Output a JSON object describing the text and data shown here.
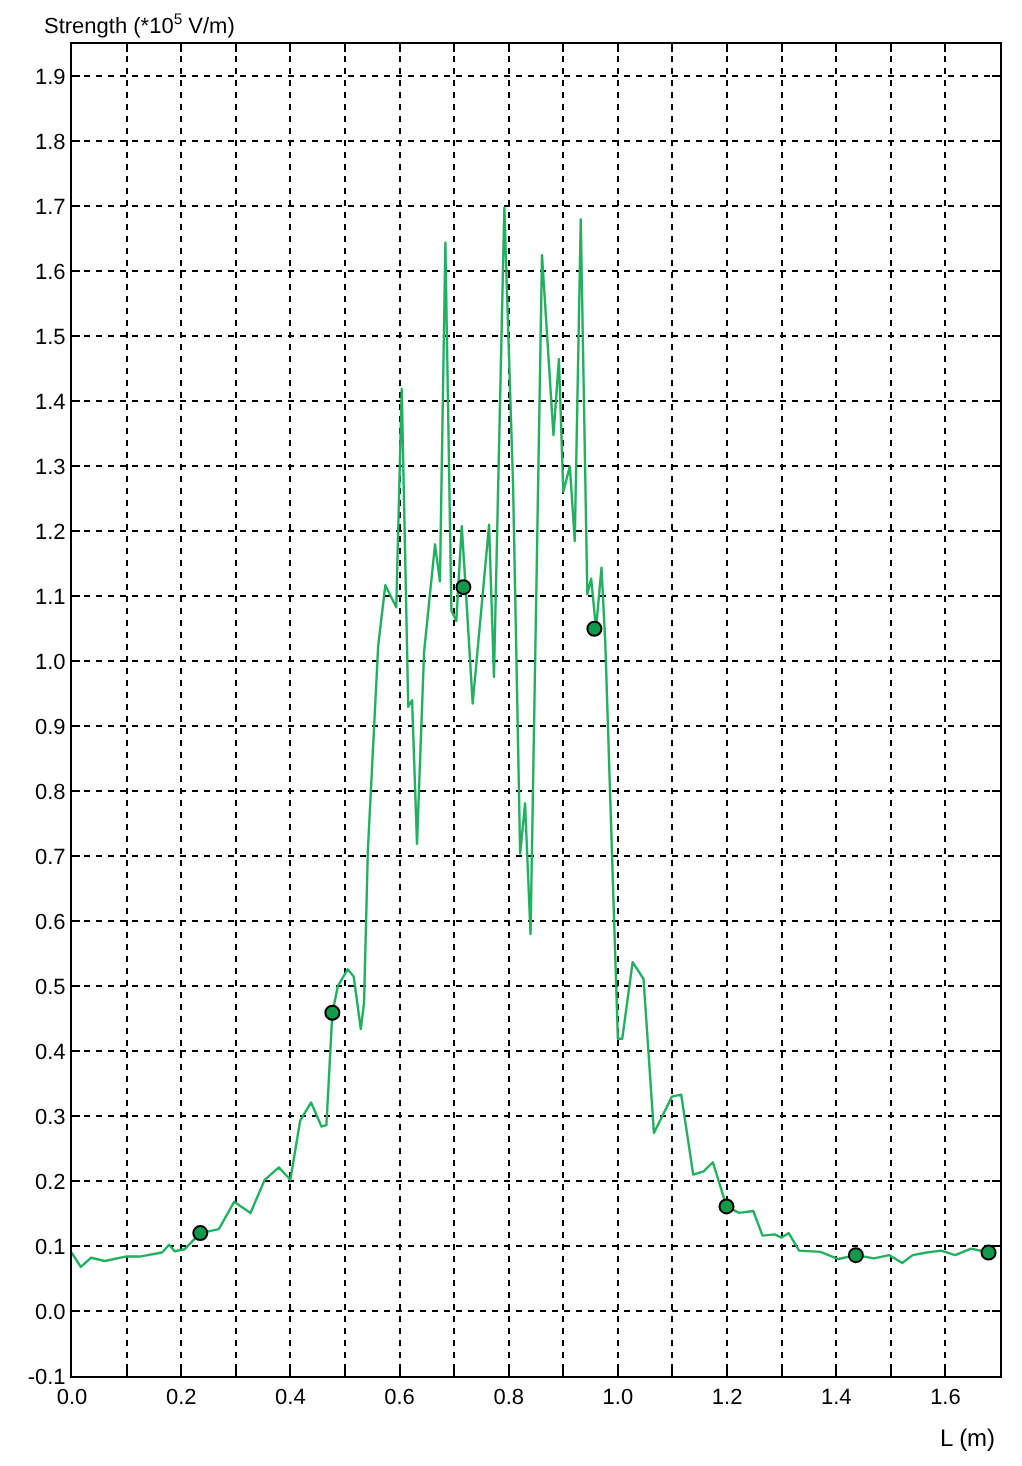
{
  "chart_data": {
    "type": "line",
    "xlabel": "L (m)",
    "ylabel": "Strength (*10$^{5}$ V/m)",
    "xlim": [
      0,
      1.7
    ],
    "ylim": [
      -0.1,
      1.95
    ],
    "xticks": [
      {
        "value": 0,
        "label": "0.0"
      },
      {
        "value": 0.1,
        "label": null
      },
      {
        "value": 0.2,
        "label": "0.2"
      },
      {
        "value": 0.3,
        "label": null
      },
      {
        "value": 0.4,
        "label": "0.4"
      },
      {
        "value": 0.5,
        "label": null
      },
      {
        "value": 0.6,
        "label": "0.6"
      },
      {
        "value": 0.7,
        "label": null
      },
      {
        "value": 0.8,
        "label": "0.8"
      },
      {
        "value": 0.9,
        "label": null
      },
      {
        "value": 1.0,
        "label": "1.0"
      },
      {
        "value": 1.1,
        "label": null
      },
      {
        "value": 1.2,
        "label": "1.2"
      },
      {
        "value": 1.3,
        "label": null
      },
      {
        "value": 1.4,
        "label": "1.4"
      },
      {
        "value": 1.5,
        "label": null
      },
      {
        "value": 1.6,
        "label": "1.6"
      }
    ],
    "yticks": [
      -0.1,
      {
        "value": 0,
        "label": "0.0"
      },
      0.1,
      0.2,
      0.3,
      0.4,
      0.5,
      0.6,
      0.7,
      0.8,
      0.9,
      {
        "value": 1.0,
        "label": "1.0"
      },
      1.1,
      1.2,
      1.3,
      1.4,
      1.5,
      1.6,
      1.7,
      1.8,
      1.9
    ],
    "grid": true,
    "line_style": "solid",
    "series": [
      {
        "marker": "none",
        "color": "#22b060",
        "x": [
          0,
          0.016,
          0.035,
          0.06,
          0.1,
          0.126,
          0.165,
          0.178,
          0.188,
          0.206,
          0.235,
          0.269,
          0.297,
          0.327,
          0.353,
          0.379,
          0.4,
          0.418,
          0.438,
          0.457,
          0.466,
          0.477,
          0.487,
          0.505,
          0.516,
          0.529,
          0.535,
          0.542,
          0.561,
          0.574,
          0.594,
          0.604,
          0.616,
          0.623,
          0.632,
          0.645,
          0.665,
          0.674,
          0.684,
          0.695,
          0.704,
          0.714,
          0.723,
          0.734,
          0.764,
          0.773,
          0.792,
          0.808,
          0.821,
          0.83,
          0.84,
          0.861,
          0.882,
          0.892,
          0.9,
          0.912,
          0.921,
          0.932,
          0.944,
          0.951,
          0.96,
          0.97,
          0.977,
          1.0,
          1.008,
          1.027,
          1.047,
          1.066,
          1.099,
          1.116,
          1.138,
          1.157,
          1.174,
          1.199,
          1.222,
          1.248,
          1.265,
          1.287,
          1.3,
          1.313,
          1.332,
          1.371,
          1.404,
          1.436,
          1.469,
          1.497,
          1.521,
          1.54,
          1.566,
          1.592,
          1.618,
          1.647,
          1.679
        ],
        "values": [
          0.089,
          0.068,
          0.082,
          0.077,
          0.084,
          0.084,
          0.09,
          0.102,
          0.092,
          0.095,
          0.12,
          0.126,
          0.168,
          0.151,
          0.202,
          0.221,
          0.202,
          0.293,
          0.321,
          0.284,
          0.286,
          0.459,
          0.5,
          0.526,
          0.515,
          0.434,
          0.474,
          0.709,
          1.025,
          1.117,
          1.083,
          1.419,
          0.93,
          0.94,
          0.719,
          1.015,
          1.18,
          1.123,
          1.644,
          1.078,
          1.062,
          1.208,
          1.088,
          0.935,
          1.21,
          0.976,
          1.698,
          1.271,
          0.704,
          0.781,
          0.58,
          1.625,
          1.348,
          1.465,
          1.261,
          1.3,
          1.185,
          1.68,
          1.103,
          1.127,
          1.05,
          1.144,
          1.027,
          0.419,
          0.419,
          0.537,
          0.511,
          0.274,
          0.33,
          0.333,
          0.21,
          0.215,
          0.229,
          0.161,
          0.151,
          0.154,
          0.116,
          0.118,
          0.113,
          0.12,
          0.093,
          0.091,
          0.08,
          0.086,
          0.081,
          0.086,
          0.074,
          0.086,
          0.09,
          0.093,
          0.086,
          0.096,
          0.09
        ]
      },
      {
        "type": "scatter",
        "marker": "circle",
        "color": "#129a4c",
        "x": [
          0.235,
          0.477,
          0.717,
          0.957,
          1.199,
          1.436,
          1.679
        ],
        "values": [
          0.12,
          0.459,
          1.114,
          1.05,
          0.161,
          0.086,
          0.09
        ]
      }
    ]
  }
}
